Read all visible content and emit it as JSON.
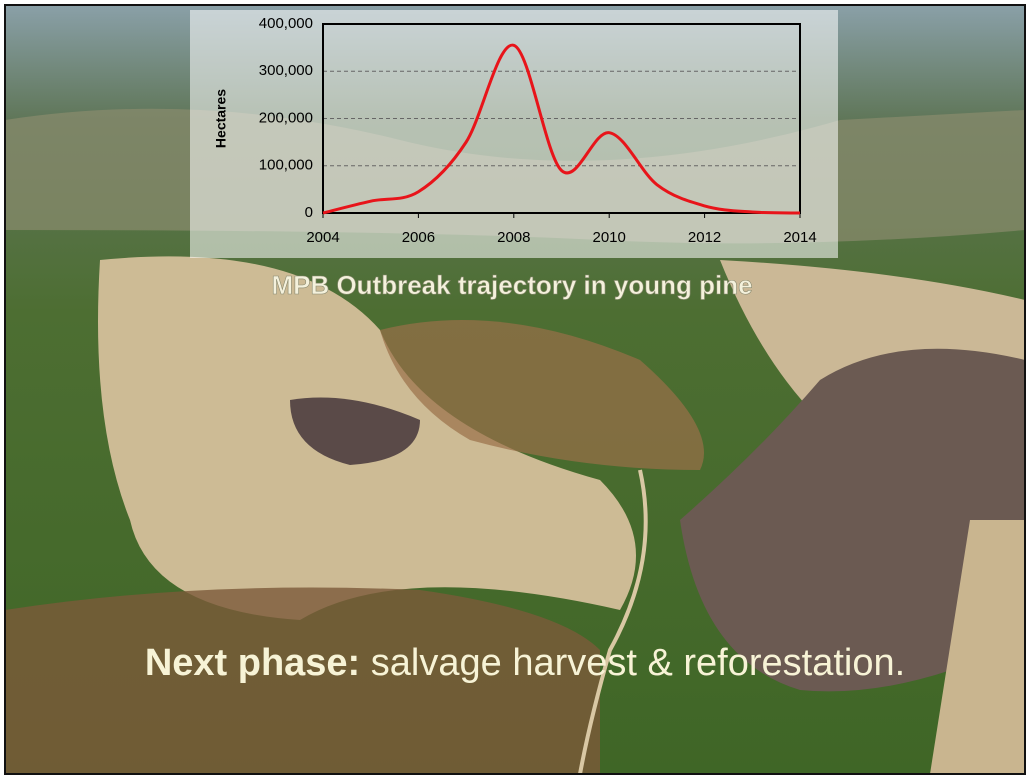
{
  "chart_data": {
    "type": "line",
    "ylabel": "Hectares",
    "x": [
      2004,
      2005,
      2006,
      2007,
      2008,
      2009,
      2010,
      2011,
      2012,
      2013,
      2014
    ],
    "series": [
      {
        "color": "#e8141a",
        "values": [
          0,
          25000,
          45000,
          150000,
          355000,
          90000,
          170000,
          60000,
          15000,
          2000,
          0
        ]
      }
    ],
    "xlim": [
      2004,
      2014
    ],
    "xticks": [
      2004,
      2006,
      2008,
      2010,
      2012,
      2014
    ],
    "ylim": [
      0,
      400000
    ],
    "yticks": [
      0,
      {
        "value": 100000,
        "label": "100,000"
      },
      {
        "value": 200000,
        "label": "200,000"
      },
      {
        "value": 300000,
        "label": "300,000"
      },
      {
        "value": 400000,
        "label": "400,000"
      }
    ],
    "grid": true
  },
  "caption": "MPB Outbreak trajectory in young pine",
  "footer": {
    "lead": "Next phase:",
    "text": "salvage harvest & reforestation."
  }
}
